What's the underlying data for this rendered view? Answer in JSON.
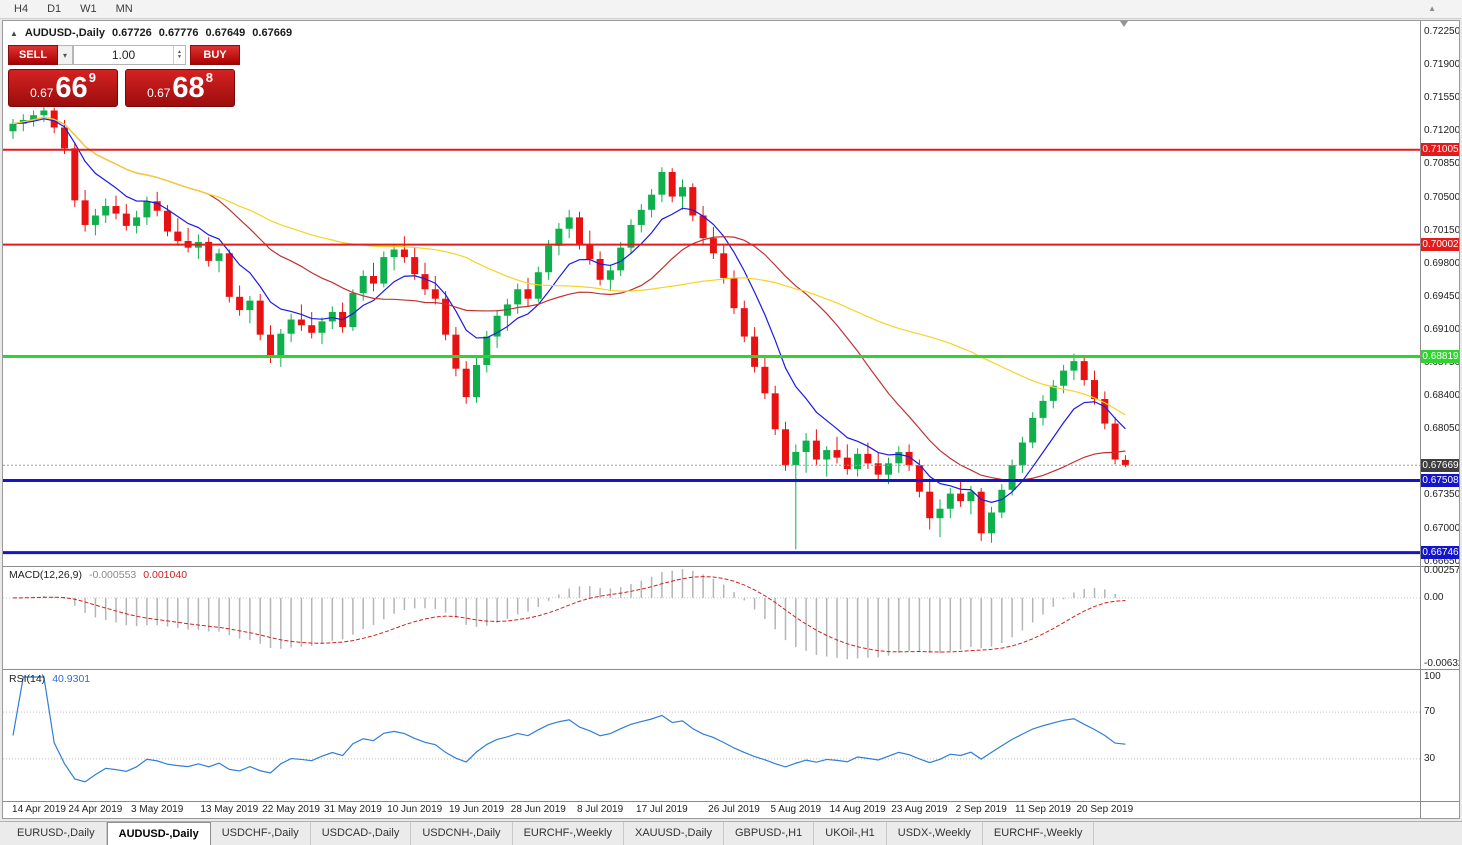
{
  "toolbar": {
    "timeframes": [
      "H4",
      "D1",
      "W1",
      "MN"
    ],
    "scroll_icon": "▲"
  },
  "chart_header": {
    "collapse_icon": "▲",
    "symbol": "AUDUSD-,Daily",
    "open": "0.67726",
    "high": "0.67776",
    "low": "0.67649",
    "close": "0.67669"
  },
  "trade_panel": {
    "sell_label": "SELL",
    "buy_label": "BUY",
    "volume": "1.00",
    "combo_icon": "▾",
    "spin_up_icon": "▲",
    "spin_down_icon": "▼",
    "sell_price": {
      "prefix": "0.67",
      "big": "66",
      "sup": "9"
    },
    "buy_price": {
      "prefix": "0.67",
      "big": "68",
      "sup": "8"
    }
  },
  "price_chart": {
    "axis": {
      "top_price": 0.72366,
      "bottom_price": 0.66615,
      "labels": [
        "0.72250",
        "0.71900",
        "0.71550",
        "0.71200",
        "0.70850",
        "0.70500",
        "0.70150",
        "0.69800",
        "0.69450",
        "0.69100",
        "0.68750",
        "0.68400",
        "0.68050",
        "0.67350",
        "0.67000",
        "0.66650"
      ]
    },
    "colors": {
      "bull": "#0faf4b",
      "bear": "#e81212"
    },
    "hlines": [
      {
        "price": 0.71005,
        "label": "0.71005",
        "color": "#e31b1b",
        "width": 2
      },
      {
        "price": 0.70002,
        "label": "0.70002",
        "color": "#e31b1b",
        "width": 2
      },
      {
        "price": 0.68819,
        "label": "0.68819",
        "color": "#2fd42f",
        "width": 3
      },
      {
        "price": 0.67508,
        "label": "0.67508",
        "color": "#1414cc",
        "width": 3
      },
      {
        "price": 0.66746,
        "label": "0.66746",
        "color": "#1414cc",
        "width": 3
      }
    ],
    "current_price": {
      "value": 0.67669,
      "label": "0.67669",
      "tag_bg": "#3d3d3d",
      "line_color": "#9a9a9a"
    }
  },
  "chart_data": {
    "type": "candlestick",
    "symbol": "AUDUSD",
    "timeframe": "Daily",
    "candles": [
      [
        0.712,
        0.7133,
        0.7112,
        0.7128
      ],
      [
        0.7128,
        0.7138,
        0.712,
        0.7132
      ],
      [
        0.7132,
        0.7142,
        0.7125,
        0.7137
      ],
      [
        0.7137,
        0.7146,
        0.713,
        0.7142
      ],
      [
        0.7142,
        0.7145,
        0.7118,
        0.7124
      ],
      [
        0.7124,
        0.7132,
        0.7096,
        0.7102
      ],
      [
        0.7102,
        0.7108,
        0.704,
        0.7047
      ],
      [
        0.7047,
        0.7058,
        0.7014,
        0.7021
      ],
      [
        0.7021,
        0.7038,
        0.701,
        0.7031
      ],
      [
        0.7031,
        0.7049,
        0.7023,
        0.7041
      ],
      [
        0.7041,
        0.7052,
        0.7027,
        0.7033
      ],
      [
        0.7033,
        0.7043,
        0.7015,
        0.702
      ],
      [
        0.702,
        0.7036,
        0.7012,
        0.7029
      ],
      [
        0.7029,
        0.7051,
        0.7021,
        0.7046
      ],
      [
        0.7046,
        0.7056,
        0.703,
        0.7036
      ],
      [
        0.7036,
        0.7042,
        0.7009,
        0.7014
      ],
      [
        0.7014,
        0.7028,
        0.6999,
        0.7004
      ],
      [
        0.7004,
        0.7018,
        0.6992,
        0.6997
      ],
      [
        0.6997,
        0.7011,
        0.6985,
        0.7003
      ],
      [
        0.7003,
        0.7008,
        0.6977,
        0.6983
      ],
      [
        0.6983,
        0.6996,
        0.6971,
        0.6991
      ],
      [
        0.6991,
        0.6995,
        0.6939,
        0.6945
      ],
      [
        0.6945,
        0.6957,
        0.6925,
        0.6931
      ],
      [
        0.6931,
        0.6946,
        0.6917,
        0.6941
      ],
      [
        0.6941,
        0.6948,
        0.6899,
        0.6905
      ],
      [
        0.6905,
        0.6915,
        0.6875,
        0.6882
      ],
      [
        0.6882,
        0.6911,
        0.6871,
        0.6906
      ],
      [
        0.6906,
        0.6927,
        0.6897,
        0.6921
      ],
      [
        0.6921,
        0.6937,
        0.6909,
        0.6915
      ],
      [
        0.6915,
        0.6929,
        0.6901,
        0.6907
      ],
      [
        0.6907,
        0.6923,
        0.6895,
        0.6919
      ],
      [
        0.6919,
        0.6935,
        0.6911,
        0.6929
      ],
      [
        0.6929,
        0.6939,
        0.6907,
        0.6913
      ],
      [
        0.6913,
        0.6953,
        0.6909,
        0.6949
      ],
      [
        0.6949,
        0.6973,
        0.6941,
        0.6967
      ],
      [
        0.6967,
        0.6981,
        0.6951,
        0.6959
      ],
      [
        0.6959,
        0.6993,
        0.6955,
        0.6987
      ],
      [
        0.6987,
        0.7001,
        0.6973,
        0.6995
      ],
      [
        0.6995,
        0.7009,
        0.6981,
        0.6987
      ],
      [
        0.6987,
        0.6997,
        0.6963,
        0.6969
      ],
      [
        0.6969,
        0.6981,
        0.6947,
        0.6953
      ],
      [
        0.6953,
        0.6967,
        0.6937,
        0.6943
      ],
      [
        0.6943,
        0.6951,
        0.6899,
        0.6905
      ],
      [
        0.6905,
        0.6913,
        0.6861,
        0.6869
      ],
      [
        0.6869,
        0.6877,
        0.6832,
        0.6839
      ],
      [
        0.6839,
        0.6881,
        0.6833,
        0.6873
      ],
      [
        0.6873,
        0.6909,
        0.6865,
        0.6903
      ],
      [
        0.6903,
        0.6931,
        0.6891,
        0.6925
      ],
      [
        0.6925,
        0.6943,
        0.6909,
        0.6937
      ],
      [
        0.6937,
        0.6959,
        0.6927,
        0.6953
      ],
      [
        0.6953,
        0.6965,
        0.6935,
        0.6943
      ],
      [
        0.6943,
        0.6977,
        0.6939,
        0.6971
      ],
      [
        0.6971,
        0.7005,
        0.6963,
        0.6999
      ],
      [
        0.6999,
        0.7023,
        0.6989,
        0.7017
      ],
      [
        0.7017,
        0.7037,
        0.7007,
        0.7029
      ],
      [
        0.7029,
        0.7035,
        0.6995,
        0.7001
      ],
      [
        0.7001,
        0.7015,
        0.6979,
        0.6985
      ],
      [
        0.6985,
        0.6993,
        0.6957,
        0.6963
      ],
      [
        0.6963,
        0.6979,
        0.6951,
        0.6973
      ],
      [
        0.6973,
        0.7003,
        0.6967,
        0.6997
      ],
      [
        0.6997,
        0.7027,
        0.6991,
        0.7021
      ],
      [
        0.7021,
        0.7043,
        0.7013,
        0.7037
      ],
      [
        0.7037,
        0.7059,
        0.7029,
        0.7053
      ],
      [
        0.7053,
        0.7082,
        0.7045,
        0.7077
      ],
      [
        0.7077,
        0.7081,
        0.7045,
        0.7051
      ],
      [
        0.7051,
        0.7069,
        0.7037,
        0.7061
      ],
      [
        0.7061,
        0.7065,
        0.7025,
        0.7031
      ],
      [
        0.7031,
        0.7041,
        0.7001,
        0.7007
      ],
      [
        0.7007,
        0.7019,
        0.6985,
        0.6991
      ],
      [
        0.6991,
        0.6999,
        0.6959,
        0.6965
      ],
      [
        0.6965,
        0.6973,
        0.6927,
        0.6933
      ],
      [
        0.6933,
        0.6941,
        0.6897,
        0.6903
      ],
      [
        0.6903,
        0.6913,
        0.6865,
        0.6871
      ],
      [
        0.6871,
        0.6881,
        0.6837,
        0.6843
      ],
      [
        0.6843,
        0.6851,
        0.6799,
        0.6805
      ],
      [
        0.6805,
        0.6813,
        0.6761,
        0.6767
      ],
      [
        0.6767,
        0.6789,
        0.6678,
        0.6781
      ],
      [
        0.6781,
        0.6801,
        0.6759,
        0.6793
      ],
      [
        0.6793,
        0.6805,
        0.6767,
        0.6773
      ],
      [
        0.6773,
        0.6787,
        0.6755,
        0.6783
      ],
      [
        0.6783,
        0.6797,
        0.6769,
        0.6775
      ],
      [
        0.6775,
        0.6789,
        0.6757,
        0.6763
      ],
      [
        0.6763,
        0.6785,
        0.6755,
        0.6779
      ],
      [
        0.6779,
        0.6791,
        0.6763,
        0.6769
      ],
      [
        0.6769,
        0.6781,
        0.6751,
        0.6757
      ],
      [
        0.6757,
        0.6775,
        0.6747,
        0.6769
      ],
      [
        0.6769,
        0.6787,
        0.6759,
        0.6781
      ],
      [
        0.6781,
        0.6789,
        0.6761,
        0.6767
      ],
      [
        0.6767,
        0.6773,
        0.6733,
        0.6739
      ],
      [
        0.6739,
        0.6753,
        0.6699,
        0.6711
      ],
      [
        0.6711,
        0.6731,
        0.6691,
        0.6721
      ],
      [
        0.6721,
        0.6743,
        0.6711,
        0.6737
      ],
      [
        0.6737,
        0.6751,
        0.6723,
        0.6729
      ],
      [
        0.6729,
        0.6745,
        0.6715,
        0.6739
      ],
      [
        0.6739,
        0.6743,
        0.6687,
        0.6695
      ],
      [
        0.6695,
        0.6723,
        0.6685,
        0.6717
      ],
      [
        0.6717,
        0.6747,
        0.6711,
        0.6741
      ],
      [
        0.6741,
        0.6773,
        0.6735,
        0.6767
      ],
      [
        0.6767,
        0.6797,
        0.6759,
        0.6791
      ],
      [
        0.6791,
        0.6823,
        0.6785,
        0.6817
      ],
      [
        0.6817,
        0.6841,
        0.6809,
        0.6835
      ],
      [
        0.6835,
        0.6857,
        0.6827,
        0.6851
      ],
      [
        0.6851,
        0.6873,
        0.6843,
        0.6867
      ],
      [
        0.6867,
        0.6885,
        0.6857,
        0.6877
      ],
      [
        0.6877,
        0.6883,
        0.6851,
        0.6857
      ],
      [
        0.6857,
        0.6867,
        0.6831,
        0.6837
      ],
      [
        0.6837,
        0.6845,
        0.6805,
        0.6811
      ],
      [
        0.6811,
        0.6818,
        0.6768,
        0.6773
      ],
      [
        0.67726,
        0.67776,
        0.67649,
        0.67669
      ]
    ],
    "date_labels": [
      {
        "i": 0,
        "t": "14 Apr 2019"
      },
      {
        "i": 8,
        "t": "24 Apr 2019"
      },
      {
        "i": 14,
        "t": "3 May 2019"
      },
      {
        "i": 21,
        "t": "13 May 2019"
      },
      {
        "i": 27,
        "t": "22 May 2019"
      },
      {
        "i": 33,
        "t": "31 May 2019"
      },
      {
        "i": 39,
        "t": "10 Jun 2019"
      },
      {
        "i": 45,
        "t": "19 Jun 2019"
      },
      {
        "i": 51,
        "t": "28 Jun 2019"
      },
      {
        "i": 57,
        "t": "8 Jul 2019"
      },
      {
        "i": 63,
        "t": "17 Jul 2019"
      },
      {
        "i": 70,
        "t": "26 Jul 2019"
      },
      {
        "i": 76,
        "t": "5 Aug 2019"
      },
      {
        "i": 82,
        "t": "14 Aug 2019"
      },
      {
        "i": 88,
        "t": "23 Aug 2019"
      },
      {
        "i": 94,
        "t": "2 Sep 2019"
      },
      {
        "i": 100,
        "t": "11 Sep 2019"
      },
      {
        "i": 106,
        "t": "20 Sep 2019"
      }
    ],
    "moving_averages": [
      {
        "period": 8,
        "method": "ema",
        "color": "#1a1ae6"
      },
      {
        "period": 20,
        "method": "sma",
        "color": "#c03232"
      },
      {
        "period": 45,
        "method": "sma",
        "color": "#f5d327"
      }
    ],
    "indicators": {
      "macd": {
        "label": "MACD(12,26,9)",
        "value_main": "-0.000553",
        "value_signal": "0.001040",
        "fast": 12,
        "slow": 26,
        "signal": 9,
        "axis_labels": [
          "0.002574",
          "0.00",
          "-0.006326"
        ],
        "axis_max": 0.002574,
        "axis_min": -0.006326,
        "histogram_color": "#b5b5b5",
        "signal_color": "#cc2222"
      },
      "rsi": {
        "label": "RSI(14)",
        "value": "40.9301",
        "period": 14,
        "axis_labels": [
          "100",
          "70",
          "30"
        ],
        "levels": [
          70,
          30
        ],
        "axis_max": 100,
        "axis_min": 0,
        "line_color": "#2f7ed8"
      }
    }
  },
  "tabs": {
    "items": [
      {
        "label": "EURUSD-,Daily",
        "active": false
      },
      {
        "label": "AUDUSD-,Daily",
        "active": true
      },
      {
        "label": "USDCHF-,Daily",
        "active": false
      },
      {
        "label": "USDCAD-,Daily",
        "active": false
      },
      {
        "label": "USDCNH-,Daily",
        "active": false
      },
      {
        "label": "EURCHF-,Weekly",
        "active": false
      },
      {
        "label": "XAUUSD-,Daily",
        "active": false
      },
      {
        "label": "GBPUSD-,H1",
        "active": false
      },
      {
        "label": "UKOil-,H1",
        "active": false
      },
      {
        "label": "USDX-,Weekly",
        "active": false
      },
      {
        "label": "EURCHF-,Weekly",
        "active": false
      }
    ]
  }
}
